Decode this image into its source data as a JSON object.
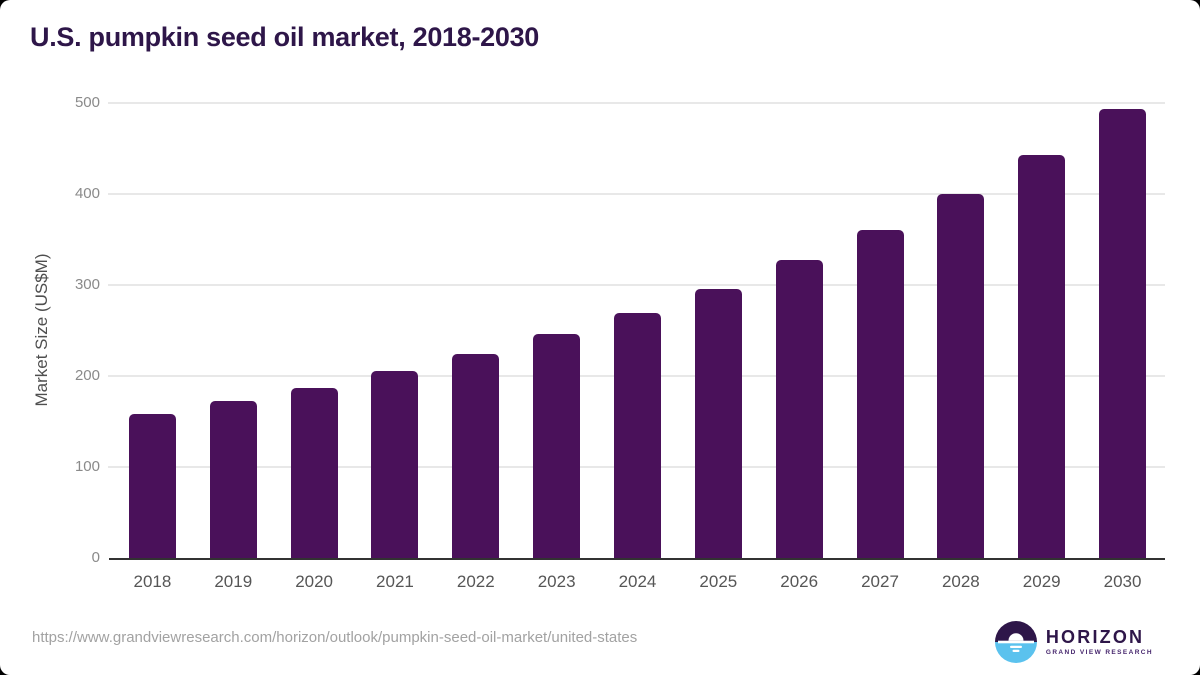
{
  "title": "U.S. pumpkin seed oil market, 2018-2030",
  "source_url": "https://www.grandviewresearch.com/horizon/outlook/pumpkin-seed-oil-market/united-states",
  "logo": {
    "name": "HORIZON",
    "subtitle": "GRAND VIEW RESEARCH",
    "icon": "horizon-sun-over-water"
  },
  "colors": {
    "bar": "#4a115a",
    "title": "#2e1649",
    "grid": "#e8e8e8",
    "axis": "#323232",
    "logo_purple": "#2e1649",
    "logo_blue": "#5bc2ee"
  },
  "chart_data": {
    "type": "bar",
    "title": "U.S. pumpkin seed oil market, 2018-2030",
    "categories": [
      "2018",
      "2019",
      "2020",
      "2021",
      "2022",
      "2023",
      "2024",
      "2025",
      "2026",
      "2027",
      "2028",
      "2029",
      "2030"
    ],
    "values": [
      158,
      172,
      187,
      205,
      224,
      246,
      269,
      296,
      327,
      361,
      400,
      443,
      493
    ],
    "xlabel": "",
    "ylabel": "Market Size (US$M)",
    "ylim": [
      0,
      500
    ],
    "yticks": [
      0,
      100,
      200,
      300,
      400,
      500
    ],
    "grid": true,
    "legend": "none",
    "bar_color": "#4a115a"
  }
}
